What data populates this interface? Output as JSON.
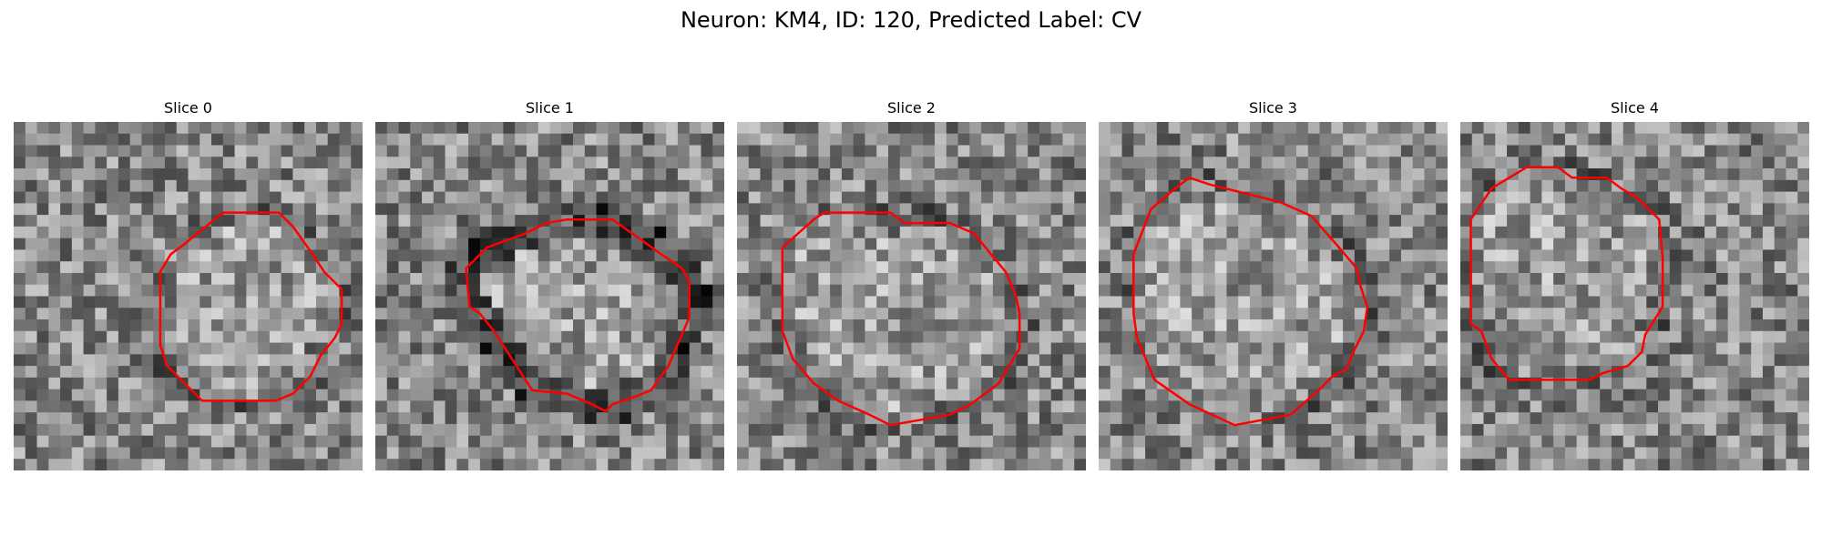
{
  "figure": {
    "title": "Neuron: KM4, ID: 120, Predicted Label: CV"
  },
  "panels": [
    {
      "title": "Slice 0",
      "contour": [
        [
          0.42,
          0.43
        ],
        [
          0.45,
          0.38
        ],
        [
          0.49,
          0.35
        ],
        [
          0.6,
          0.26
        ],
        [
          0.76,
          0.26
        ],
        [
          0.8,
          0.3
        ],
        [
          0.85,
          0.37
        ],
        [
          0.89,
          0.43
        ],
        [
          0.94,
          0.48
        ],
        [
          0.94,
          0.58
        ],
        [
          0.92,
          0.62
        ],
        [
          0.88,
          0.67
        ],
        [
          0.85,
          0.73
        ],
        [
          0.8,
          0.78
        ],
        [
          0.75,
          0.8
        ],
        [
          0.54,
          0.8
        ],
        [
          0.48,
          0.74
        ],
        [
          0.44,
          0.7
        ],
        [
          0.42,
          0.64
        ]
      ]
    },
    {
      "title": "Slice 1",
      "contour": [
        [
          0.26,
          0.42
        ],
        [
          0.32,
          0.36
        ],
        [
          0.43,
          0.32
        ],
        [
          0.49,
          0.29
        ],
        [
          0.55,
          0.28
        ],
        [
          0.68,
          0.28
        ],
        [
          0.75,
          0.33
        ],
        [
          0.82,
          0.38
        ],
        [
          0.88,
          0.42
        ],
        [
          0.9,
          0.46
        ],
        [
          0.9,
          0.56
        ],
        [
          0.87,
          0.63
        ],
        [
          0.84,
          0.7
        ],
        [
          0.79,
          0.77
        ],
        [
          0.74,
          0.79
        ],
        [
          0.68,
          0.81
        ],
        [
          0.66,
          0.83
        ],
        [
          0.62,
          0.81
        ],
        [
          0.55,
          0.78
        ],
        [
          0.45,
          0.77
        ],
        [
          0.34,
          0.6
        ],
        [
          0.3,
          0.55
        ],
        [
          0.27,
          0.53
        ]
      ]
    },
    {
      "title": "Slice 2",
      "contour": [
        [
          0.13,
          0.36
        ],
        [
          0.22,
          0.28
        ],
        [
          0.25,
          0.26
        ],
        [
          0.44,
          0.26
        ],
        [
          0.48,
          0.29
        ],
        [
          0.61,
          0.29
        ],
        [
          0.68,
          0.32
        ],
        [
          0.72,
          0.37
        ],
        [
          0.77,
          0.43
        ],
        [
          0.8,
          0.5
        ],
        [
          0.81,
          0.55
        ],
        [
          0.81,
          0.65
        ],
        [
          0.75,
          0.75
        ],
        [
          0.67,
          0.81
        ],
        [
          0.61,
          0.84
        ],
        [
          0.44,
          0.87
        ],
        [
          0.38,
          0.84
        ],
        [
          0.29,
          0.8
        ],
        [
          0.22,
          0.75
        ],
        [
          0.16,
          0.68
        ],
        [
          0.13,
          0.6
        ]
      ]
    },
    {
      "title": "Slice 3",
      "contour": [
        [
          0.1,
          0.38
        ],
        [
          0.15,
          0.25
        ],
        [
          0.22,
          0.19
        ],
        [
          0.26,
          0.16
        ],
        [
          0.32,
          0.18
        ],
        [
          0.52,
          0.23
        ],
        [
          0.61,
          0.27
        ],
        [
          0.68,
          0.35
        ],
        [
          0.74,
          0.42
        ],
        [
          0.75,
          0.47
        ],
        [
          0.77,
          0.53
        ],
        [
          0.76,
          0.6
        ],
        [
          0.73,
          0.66
        ],
        [
          0.71,
          0.71
        ],
        [
          0.67,
          0.73
        ],
        [
          0.63,
          0.77
        ],
        [
          0.55,
          0.84
        ],
        [
          0.39,
          0.87
        ],
        [
          0.26,
          0.81
        ],
        [
          0.16,
          0.74
        ],
        [
          0.11,
          0.62
        ],
        [
          0.1,
          0.55
        ]
      ]
    },
    {
      "title": "Slice 4",
      "contour": [
        [
          0.03,
          0.28
        ],
        [
          0.09,
          0.19
        ],
        [
          0.19,
          0.13
        ],
        [
          0.28,
          0.13
        ],
        [
          0.32,
          0.16
        ],
        [
          0.42,
          0.16
        ],
        [
          0.46,
          0.19
        ],
        [
          0.51,
          0.22
        ],
        [
          0.57,
          0.28
        ],
        [
          0.58,
          0.39
        ],
        [
          0.58,
          0.53
        ],
        [
          0.53,
          0.61
        ],
        [
          0.52,
          0.66
        ],
        [
          0.48,
          0.7
        ],
        [
          0.41,
          0.72
        ],
        [
          0.37,
          0.74
        ],
        [
          0.14,
          0.74
        ],
        [
          0.09,
          0.68
        ],
        [
          0.06,
          0.6
        ],
        [
          0.03,
          0.58
        ]
      ]
    }
  ]
}
